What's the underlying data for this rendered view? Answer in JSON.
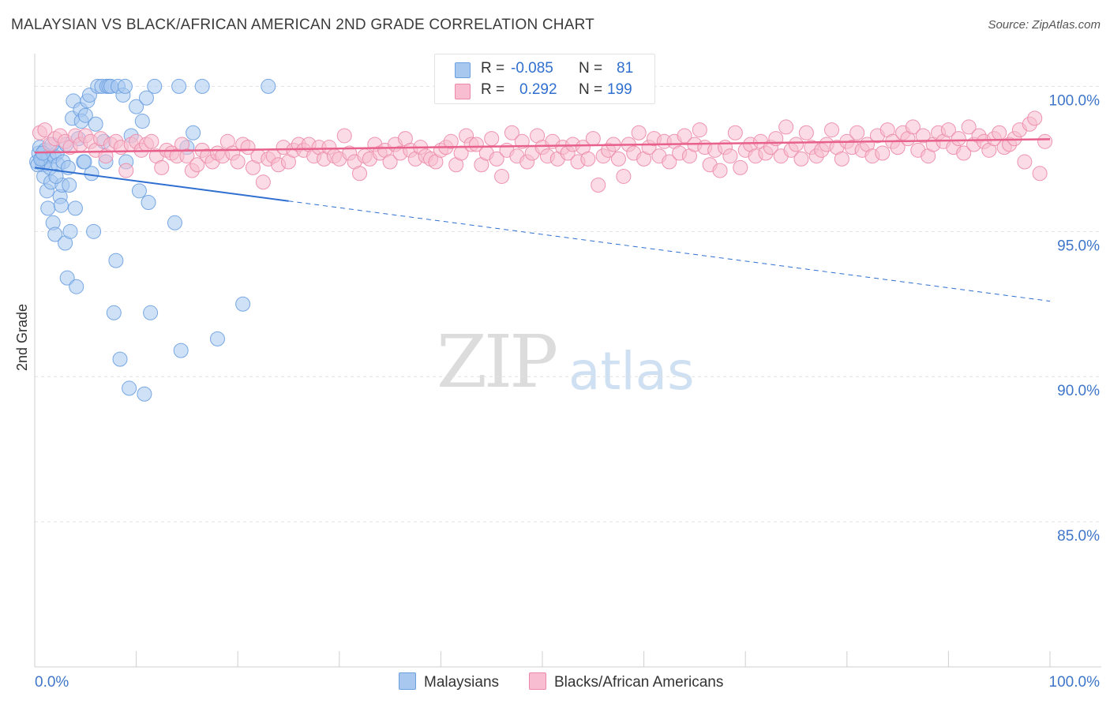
{
  "title": "MALAYSIAN VS BLACK/AFRICAN AMERICAN 2ND GRADE CORRELATION CHART",
  "source": "Source: ZipAtlas.com",
  "watermark": {
    "zip": "ZIP",
    "atlas": "atlas"
  },
  "legend": {
    "rows": [
      {
        "r_label": "R =",
        "r_value": "-0.085",
        "n_label": "N =",
        "n_value": "81",
        "color": "#a8c8f0",
        "border": "#6a9fe0"
      },
      {
        "r_label": "R =",
        "r_value": "0.292",
        "n_label": "N =",
        "n_value": "199",
        "color": "#f8bdd0",
        "border": "#ec8aa8"
      }
    ]
  },
  "bottom_legend": [
    {
      "label": "Malaysians",
      "color": "#a8c8f0",
      "border": "#6a9fe0"
    },
    {
      "label": "Blacks/African Americans",
      "color": "#f8bdd0",
      "border": "#ec8aa8"
    }
  ],
  "chart_data": {
    "type": "scatter",
    "title": "MALAYSIAN VS BLACK/AFRICAN AMERICAN 2ND GRADE CORRELATION CHART",
    "xlabel": "",
    "ylabel": "2nd Grade",
    "xlim": [
      0,
      100
    ],
    "ylim": [
      80,
      100.8
    ],
    "x_tick_labels": [
      "0.0%",
      "100.0%"
    ],
    "y_ticks": [
      85,
      90,
      95,
      100
    ],
    "y_tick_labels": [
      "85.0%",
      "90.0%",
      "95.0%",
      "100.0%"
    ],
    "grid": true,
    "series": [
      {
        "name": "Malaysians",
        "color": "#6a9fe0",
        "fill": "#a8c8f0",
        "trend": {
          "x0": 0,
          "y0": 97.2,
          "x1": 25,
          "y1": 96.05,
          "dashed_to_x": 100,
          "dashed_to_y": 92.6,
          "color": "#2f6fd0"
        },
        "points": [
          [
            0.2,
            97.4
          ],
          [
            0.4,
            97.7
          ],
          [
            0.5,
            97.9
          ],
          [
            0.7,
            97.5
          ],
          [
            0.8,
            97.3
          ],
          [
            0.9,
            96.9
          ],
          [
            1.0,
            97.8
          ],
          [
            1.1,
            97.4
          ],
          [
            1.2,
            96.4
          ],
          [
            1.3,
            95.8
          ],
          [
            1.4,
            97.6
          ],
          [
            1.5,
            97.2
          ],
          [
            1.6,
            96.7
          ],
          [
            1.8,
            95.3
          ],
          [
            1.9,
            97.6
          ],
          [
            2.0,
            94.9
          ],
          [
            2.2,
            97.7
          ],
          [
            2.3,
            97.3
          ],
          [
            2.5,
            96.2
          ],
          [
            2.6,
            95.9
          ],
          [
            2.7,
            96.6
          ],
          [
            2.8,
            97.4
          ],
          [
            3.0,
            94.6
          ],
          [
            3.1,
            98.0
          ],
          [
            3.2,
            93.4
          ],
          [
            3.4,
            96.6
          ],
          [
            3.5,
            95.0
          ],
          [
            3.7,
            98.9
          ],
          [
            3.8,
            99.5
          ],
          [
            4.0,
            95.8
          ],
          [
            4.1,
            93.1
          ],
          [
            4.3,
            98.2
          ],
          [
            4.5,
            99.2
          ],
          [
            4.6,
            98.8
          ],
          [
            4.8,
            97.4
          ],
          [
            5.0,
            99.0
          ],
          [
            5.2,
            99.5
          ],
          [
            5.4,
            99.7
          ],
          [
            5.6,
            97.0
          ],
          [
            5.8,
            95.0
          ],
          [
            6.0,
            98.7
          ],
          [
            6.2,
            100.0
          ],
          [
            6.6,
            100.0
          ],
          [
            7.0,
            97.4
          ],
          [
            7.1,
            100.0
          ],
          [
            7.3,
            100.0
          ],
          [
            7.5,
            100.0
          ],
          [
            7.8,
            92.2
          ],
          [
            8.0,
            94.0
          ],
          [
            8.2,
            100.0
          ],
          [
            8.4,
            90.6
          ],
          [
            8.7,
            99.7
          ],
          [
            8.9,
            100.0
          ],
          [
            9.0,
            97.4
          ],
          [
            9.3,
            89.6
          ],
          [
            9.5,
            98.3
          ],
          [
            10.0,
            99.3
          ],
          [
            10.3,
            96.4
          ],
          [
            10.6,
            98.8
          ],
          [
            10.8,
            89.4
          ],
          [
            11.0,
            99.6
          ],
          [
            11.2,
            96.0
          ],
          [
            11.4,
            92.2
          ],
          [
            11.8,
            100.0
          ],
          [
            13.8,
            95.3
          ],
          [
            14.2,
            100.0
          ],
          [
            14.4,
            90.9
          ],
          [
            15.0,
            97.9
          ],
          [
            15.6,
            98.4
          ],
          [
            16.5,
            100.0
          ],
          [
            18.0,
            91.3
          ],
          [
            20.5,
            92.5
          ],
          [
            23.0,
            100.0
          ],
          [
            0.3,
            97.3
          ],
          [
            0.6,
            97.5
          ],
          [
            1.7,
            98.0
          ],
          [
            2.1,
            96.9
          ],
          [
            4.9,
            97.4
          ],
          [
            6.8,
            98.1
          ],
          [
            0.8,
            97.7
          ],
          [
            3.3,
            97.2
          ]
        ]
      },
      {
        "name": "Blacks/African Americans",
        "color": "#ec8aa8",
        "fill": "#f8bdd0",
        "trend": {
          "x0": 0,
          "y0": 97.72,
          "x1": 100,
          "y1": 98.18,
          "color": "#e8608c"
        },
        "points": [
          [
            0.5,
            98.4
          ],
          [
            1.0,
            98.5
          ],
          [
            1.5,
            98.0
          ],
          [
            2.0,
            98.2
          ],
          [
            2.5,
            98.3
          ],
          [
            3.0,
            98.1
          ],
          [
            3.5,
            97.9
          ],
          [
            4.0,
            98.3
          ],
          [
            4.5,
            98.0
          ],
          [
            5.0,
            98.3
          ],
          [
            5.5,
            98.1
          ],
          [
            6.0,
            97.8
          ],
          [
            6.5,
            98.2
          ],
          [
            7.0,
            97.6
          ],
          [
            7.5,
            98.0
          ],
          [
            8.0,
            98.1
          ],
          [
            8.5,
            97.9
          ],
          [
            9.0,
            97.1
          ],
          [
            9.5,
            98.0
          ],
          [
            10.0,
            98.1
          ],
          [
            10.5,
            97.8
          ],
          [
            11.0,
            98.0
          ],
          [
            11.5,
            98.1
          ],
          [
            12.0,
            97.6
          ],
          [
            12.5,
            97.2
          ],
          [
            13.0,
            97.8
          ],
          [
            13.5,
            97.7
          ],
          [
            14.0,
            97.6
          ],
          [
            14.5,
            98.0
          ],
          [
            15.0,
            97.6
          ],
          [
            15.5,
            97.1
          ],
          [
            16.0,
            97.3
          ],
          [
            16.5,
            97.8
          ],
          [
            17.0,
            97.6
          ],
          [
            17.5,
            97.4
          ],
          [
            18.0,
            97.7
          ],
          [
            18.5,
            97.6
          ],
          [
            19.0,
            98.1
          ],
          [
            19.5,
            97.7
          ],
          [
            20.0,
            97.4
          ],
          [
            20.5,
            98.0
          ],
          [
            21.0,
            97.9
          ],
          [
            21.5,
            97.2
          ],
          [
            22.0,
            97.6
          ],
          [
            22.5,
            96.7
          ],
          [
            23.0,
            97.5
          ],
          [
            23.5,
            97.6
          ],
          [
            24.0,
            97.3
          ],
          [
            24.5,
            97.9
          ],
          [
            25.0,
            97.4
          ],
          [
            25.5,
            97.8
          ],
          [
            26.0,
            98.0
          ],
          [
            26.5,
            97.8
          ],
          [
            27.0,
            98.0
          ],
          [
            27.5,
            97.6
          ],
          [
            28.0,
            97.9
          ],
          [
            28.5,
            97.5
          ],
          [
            29.0,
            97.9
          ],
          [
            29.5,
            97.6
          ],
          [
            30.0,
            97.5
          ],
          [
            30.5,
            98.3
          ],
          [
            31.0,
            97.7
          ],
          [
            31.5,
            97.4
          ],
          [
            32.0,
            97.0
          ],
          [
            32.5,
            97.6
          ],
          [
            33.0,
            97.5
          ],
          [
            33.5,
            98.0
          ],
          [
            34.0,
            97.7
          ],
          [
            34.5,
            97.8
          ],
          [
            35.0,
            97.4
          ],
          [
            35.5,
            98.0
          ],
          [
            36.0,
            97.7
          ],
          [
            36.5,
            98.2
          ],
          [
            37.0,
            97.8
          ],
          [
            37.5,
            97.5
          ],
          [
            38.0,
            97.9
          ],
          [
            38.5,
            97.6
          ],
          [
            39.0,
            97.5
          ],
          [
            39.5,
            97.4
          ],
          [
            40.0,
            97.8
          ],
          [
            40.5,
            97.9
          ],
          [
            41.0,
            98.1
          ],
          [
            41.5,
            97.3
          ],
          [
            42.0,
            97.7
          ],
          [
            42.5,
            98.3
          ],
          [
            43.0,
            98.0
          ],
          [
            43.5,
            98.0
          ],
          [
            44.0,
            97.3
          ],
          [
            44.5,
            97.7
          ],
          [
            45.0,
            98.2
          ],
          [
            45.5,
            97.5
          ],
          [
            46.0,
            96.9
          ],
          [
            46.5,
            97.8
          ],
          [
            47.0,
            98.4
          ],
          [
            47.5,
            97.6
          ],
          [
            48.0,
            98.1
          ],
          [
            48.5,
            97.4
          ],
          [
            49.0,
            97.7
          ],
          [
            49.5,
            98.3
          ],
          [
            50.0,
            97.9
          ],
          [
            50.5,
            97.6
          ],
          [
            51.0,
            98.1
          ],
          [
            51.5,
            97.5
          ],
          [
            52.0,
            97.9
          ],
          [
            52.5,
            97.7
          ],
          [
            53.0,
            98.0
          ],
          [
            53.5,
            97.4
          ],
          [
            54.0,
            97.9
          ],
          [
            54.5,
            97.5
          ],
          [
            55.0,
            98.2
          ],
          [
            55.5,
            96.6
          ],
          [
            56.0,
            97.6
          ],
          [
            56.5,
            97.8
          ],
          [
            57.0,
            98.0
          ],
          [
            57.5,
            97.5
          ],
          [
            58.0,
            96.9
          ],
          [
            58.5,
            98.0
          ],
          [
            59.0,
            97.7
          ],
          [
            59.5,
            98.4
          ],
          [
            60.0,
            97.5
          ],
          [
            60.5,
            97.9
          ],
          [
            61.0,
            98.2
          ],
          [
            61.5,
            97.6
          ],
          [
            62.0,
            98.1
          ],
          [
            62.5,
            97.4
          ],
          [
            63.0,
            98.1
          ],
          [
            63.5,
            97.7
          ],
          [
            64.0,
            98.3
          ],
          [
            64.5,
            97.6
          ],
          [
            65.0,
            98.0
          ],
          [
            65.5,
            98.5
          ],
          [
            66.0,
            97.9
          ],
          [
            66.5,
            97.3
          ],
          [
            67.0,
            97.8
          ],
          [
            67.5,
            97.1
          ],
          [
            68.0,
            97.9
          ],
          [
            68.5,
            97.6
          ],
          [
            69.0,
            98.4
          ],
          [
            69.5,
            97.2
          ],
          [
            70.0,
            97.8
          ],
          [
            70.5,
            98.0
          ],
          [
            71.0,
            97.6
          ],
          [
            71.5,
            98.1
          ],
          [
            72.0,
            97.7
          ],
          [
            72.5,
            97.9
          ],
          [
            73.0,
            98.2
          ],
          [
            73.5,
            97.6
          ],
          [
            74.0,
            98.6
          ],
          [
            74.5,
            97.8
          ],
          [
            75.0,
            98.0
          ],
          [
            75.5,
            97.5
          ],
          [
            76.0,
            98.4
          ],
          [
            76.5,
            97.9
          ],
          [
            77.0,
            97.6
          ],
          [
            77.5,
            97.8
          ],
          [
            78.0,
            98.0
          ],
          [
            78.5,
            98.5
          ],
          [
            79.0,
            97.9
          ],
          [
            79.5,
            97.5
          ],
          [
            80.0,
            98.1
          ],
          [
            80.5,
            97.9
          ],
          [
            81.0,
            98.4
          ],
          [
            81.5,
            97.8
          ],
          [
            82.0,
            98.0
          ],
          [
            82.5,
            97.6
          ],
          [
            83.0,
            98.3
          ],
          [
            83.5,
            97.7
          ],
          [
            84.0,
            98.5
          ],
          [
            84.5,
            98.1
          ],
          [
            85.0,
            97.9
          ],
          [
            85.5,
            98.4
          ],
          [
            86.0,
            98.2
          ],
          [
            86.5,
            98.6
          ],
          [
            87.0,
            97.8
          ],
          [
            87.5,
            98.3
          ],
          [
            88.0,
            97.6
          ],
          [
            88.5,
            98.0
          ],
          [
            89.0,
            98.4
          ],
          [
            89.5,
            98.1
          ],
          [
            90.0,
            98.5
          ],
          [
            90.5,
            97.9
          ],
          [
            91.0,
            98.2
          ],
          [
            91.5,
            97.7
          ],
          [
            92.0,
            98.6
          ],
          [
            92.5,
            98.0
          ],
          [
            93.0,
            98.3
          ],
          [
            93.5,
            98.1
          ],
          [
            94.0,
            97.8
          ],
          [
            94.5,
            98.2
          ],
          [
            95.0,
            98.4
          ],
          [
            95.5,
            97.9
          ],
          [
            96.0,
            98.0
          ],
          [
            96.5,
            98.2
          ],
          [
            97.0,
            98.5
          ],
          [
            97.5,
            97.4
          ],
          [
            98.0,
            98.7
          ],
          [
            98.5,
            98.9
          ],
          [
            99.0,
            97.0
          ],
          [
            99.5,
            98.1
          ]
        ]
      }
    ]
  }
}
